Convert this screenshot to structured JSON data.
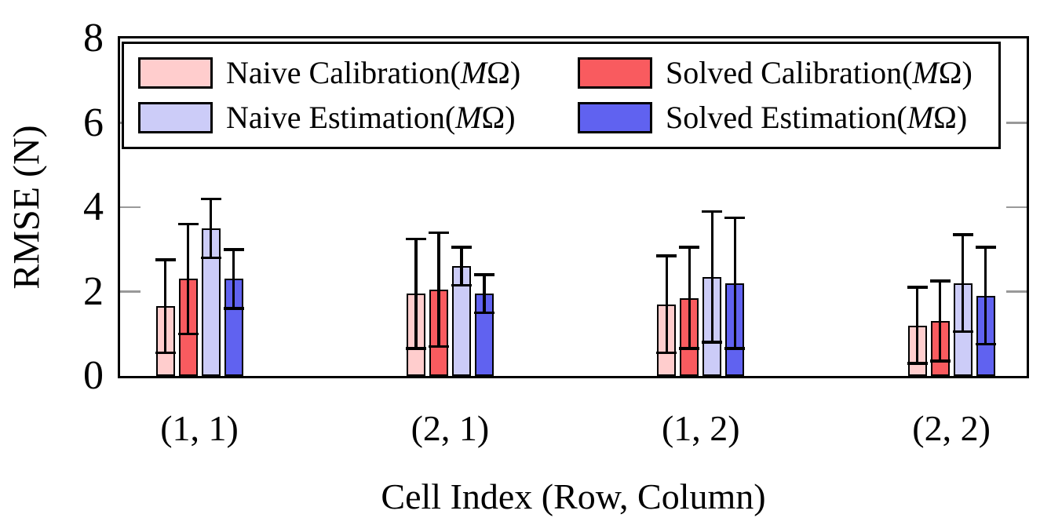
{
  "figure": {
    "ylabel": "RMSE (N)",
    "xlabel": "Cell Index (Row, Column)"
  },
  "legend": {
    "items": [
      {
        "pre": "Naive Calibration(",
        "m": "M",
        "post": "Ω)",
        "color": "#FFCDCD"
      },
      {
        "pre": "Solved Calibration(",
        "m": "M",
        "post": "Ω)",
        "color": "#F95B5F"
      },
      {
        "pre": "Naive Estimation(",
        "m": "M",
        "post": "Ω)",
        "color": "#CCCCF8"
      },
      {
        "pre": "Solved Estimation(",
        "m": "M",
        "post": "Ω)",
        "color": "#6062F0"
      }
    ]
  },
  "chart_data": {
    "type": "bar",
    "title": "",
    "xlabel": "Cell Index (Row, Column)",
    "ylabel": "RMSE (N)",
    "categories": [
      "(1, 1)",
      "(2, 1)",
      "(1, 2)",
      "(2, 2)"
    ],
    "series": [
      {
        "name": "Naive Calibration(MΩ)",
        "color": "#FFCDCD",
        "values": [
          1.65,
          1.95,
          1.7,
          1.2
        ],
        "errors": [
          1.1,
          1.3,
          1.15,
          0.9
        ]
      },
      {
        "name": "Solved Calibration(MΩ)",
        "color": "#F95B5F",
        "values": [
          2.3,
          2.05,
          1.85,
          1.3
        ],
        "errors": [
          1.3,
          1.35,
          1.2,
          0.95
        ]
      },
      {
        "name": "Naive Estimation(MΩ)",
        "color": "#CCCCF8",
        "values": [
          3.5,
          2.6,
          2.35,
          2.2
        ],
        "errors": [
          0.7,
          0.45,
          1.55,
          1.15
        ]
      },
      {
        "name": "Solved Estimation(MΩ)",
        "color": "#6062F0",
        "values": [
          2.3,
          1.95,
          2.2,
          1.9
        ],
        "errors": [
          0.7,
          0.45,
          1.55,
          1.15
        ]
      }
    ],
    "ylim": [
      0,
      8
    ],
    "yticks": [
      0,
      2,
      4,
      6,
      8
    ],
    "grid": "off",
    "tick_style": "short gray inner ticks on left and right plot edges",
    "error_bars": "symmetric black whiskers with caps",
    "legend_position": "top inside plot, 2 columns, black border"
  }
}
